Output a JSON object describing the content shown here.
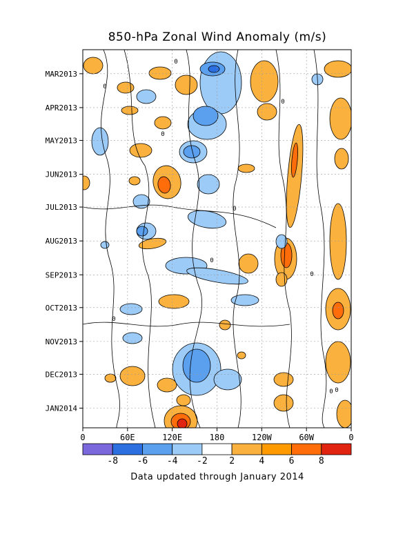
{
  "chart_data": {
    "type": "heatmap",
    "title": "850-hPa Zonal Wind Anomaly (m/s)",
    "subtitle": "Data updated through January 2014",
    "x_ticks": [
      "0",
      "60E",
      "120E",
      "180",
      "120W",
      "60W",
      "0"
    ],
    "y_ticks": [
      "MAR2013",
      "APR2013",
      "MAY2013",
      "JUN2013",
      "JUL2013",
      "AUG2013",
      "SEP2013",
      "OCT2013",
      "NOV2013",
      "DEC2013",
      "JAN2014"
    ],
    "colorbar": {
      "boundaries": [
        -10,
        -8,
        -6,
        -4,
        -2,
        2,
        4,
        6,
        8,
        10
      ],
      "labels": [
        "-8",
        "-6",
        "-4",
        "-2",
        "2",
        "4",
        "6",
        "8"
      ],
      "colors": [
        "#7b68dd",
        "#2c6fe0",
        "#5aa0ef",
        "#9ccbf7",
        "#ffffff",
        "#fbb13e",
        "#ff9a00",
        "#ff6d0a",
        "#e02410"
      ]
    },
    "contour_labels": [
      "0",
      "0",
      "0",
      "0",
      "0",
      "0",
      "0",
      "0",
      "0",
      "0"
    ]
  }
}
